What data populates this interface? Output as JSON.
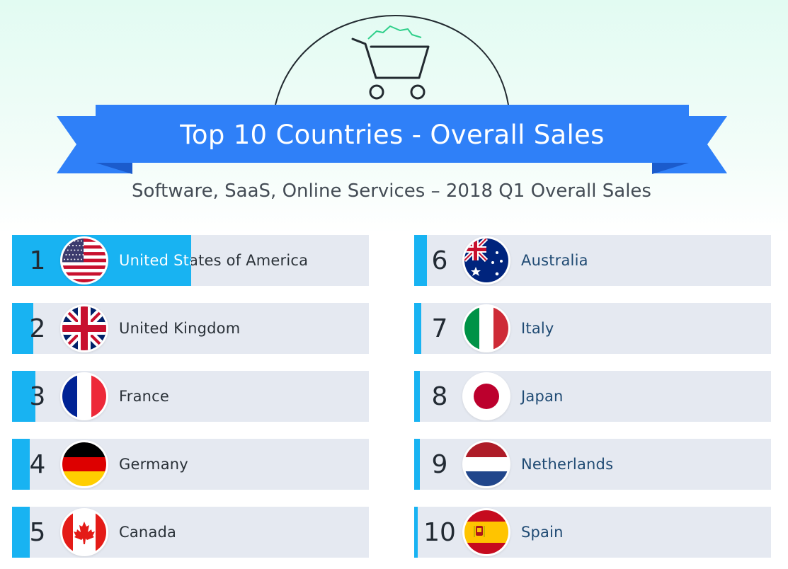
{
  "header": {
    "title": "Top 10 Countries - Overall Sales",
    "subtitle": "Software, SaaS, Online Services – 2018 Q1 Overall Sales",
    "icon": "shopping-cart-icon"
  },
  "colors": {
    "ribbon": "#2f80f8",
    "ribbon_fold": "#1b5bcc",
    "bar": "#18b3f2",
    "card": "#e5e9f1",
    "rank_text": "#222a33",
    "left_label": "#2a3138",
    "right_label": "#1f4a73",
    "cart_green": "#2fcf8a"
  },
  "chart_data": {
    "type": "bar",
    "title": "Top 10 Countries - Overall Sales",
    "subtitle": "Software, SaaS, Online Services – 2018 Q1 Overall Sales",
    "categories": [
      "United States of America",
      "United Kingdom",
      "France",
      "Germany",
      "Canada",
      "Australia",
      "Italy",
      "Japan",
      "Netherlands",
      "Spain"
    ],
    "ranks": [
      "1",
      "2",
      "3",
      "4",
      "5",
      "6",
      "7",
      "8",
      "9",
      "10"
    ],
    "flags": [
      "us-flag-icon",
      "uk-flag-icon",
      "france-flag-icon",
      "germany-flag-icon",
      "canada-flag-icon",
      "australia-flag-icon",
      "italy-flag-icon",
      "japan-flag-icon",
      "netherlands-flag-icon",
      "spain-flag-icon"
    ],
    "values": [
      1.0,
      0.12,
      0.13,
      0.1,
      0.1,
      0.07,
      0.04,
      0.03,
      0.03,
      0.02
    ],
    "value_units": "fraction of the top country's sales, read from bar fill",
    "xlabel": "",
    "ylabel": "",
    "ylim": [
      0,
      1
    ],
    "grid": false,
    "legend": "none"
  }
}
